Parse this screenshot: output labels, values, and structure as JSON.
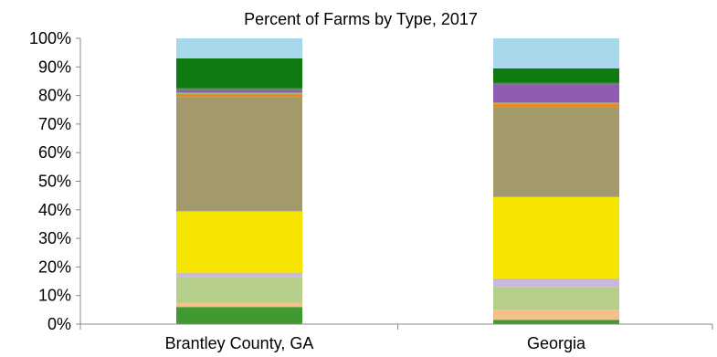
{
  "chart_data": {
    "type": "bar",
    "stacked": true,
    "title": "Percent of Farms by Type, 2017",
    "xlabel": "",
    "ylabel": "",
    "ylim": [
      0,
      100
    ],
    "yticks": [
      0,
      10,
      20,
      30,
      40,
      50,
      60,
      70,
      80,
      90,
      100
    ],
    "ytick_labels": [
      "0%",
      "10%",
      "20%",
      "30%",
      "40%",
      "50%",
      "60%",
      "70%",
      "80%",
      "90%",
      "100%"
    ],
    "categories": [
      "Brantley County, GA",
      "Georgia"
    ],
    "series": [
      {
        "color": "#3f9b2f",
        "values": [
          6.0,
          1.5
        ]
      },
      {
        "color": "#f7c08a",
        "values": [
          1.5,
          3.5
        ]
      },
      {
        "color": "#b5cf8a",
        "values": [
          9.0,
          8.0
        ]
      },
      {
        "color": "#c8b8dc",
        "values": [
          1.5,
          3.0
        ]
      },
      {
        "color": "#f5e400",
        "values": [
          21.5,
          28.5
        ]
      },
      {
        "color": "#a3996b",
        "values": [
          40.0,
          31.5
        ]
      },
      {
        "color": "#e58a1f",
        "values": [
          1.0,
          1.0
        ]
      },
      {
        "color": "#a9b872",
        "values": [
          0.5,
          0.5
        ]
      },
      {
        "color": "#8f5bb3",
        "values": [
          1.0,
          6.5
        ]
      },
      {
        "color": "#3f9b2f",
        "values": [
          0.5,
          0.5
        ]
      },
      {
        "color": "#0f7a0f",
        "values": [
          10.5,
          5.0
        ]
      },
      {
        "color": "#a8d8ec",
        "values": [
          7.0,
          10.5
        ]
      }
    ]
  }
}
